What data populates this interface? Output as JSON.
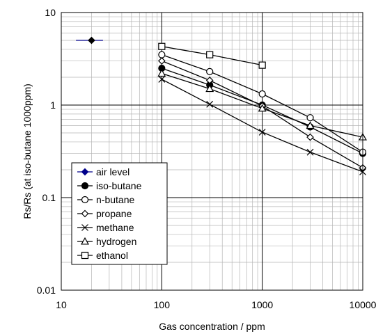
{
  "chart_data": {
    "type": "line",
    "title": "",
    "xlabel": "Gas concentration / ppm",
    "ylabel": "Rs/Rs (at iso-butane 1000ppm)",
    "x_scale": "log",
    "y_scale": "log",
    "xlim": [
      10,
      10000
    ],
    "ylim": [
      0.01,
      10
    ],
    "x_ticks": [
      "10",
      "100",
      "1000",
      "10000"
    ],
    "y_ticks": [
      "0.01",
      "0.1",
      "1",
      "10"
    ],
    "grid": true,
    "legend_position": "bottom-left",
    "series": [
      {
        "name": "air level",
        "marker": "diamond-filled",
        "color": "#00008B",
        "x": [
          14,
          20,
          26
        ],
        "y": [
          5,
          5,
          5
        ]
      },
      {
        "name": "iso-butane",
        "marker": "circle-filled",
        "color": "#000000",
        "x": [
          100,
          300,
          1000,
          3000,
          10000
        ],
        "y": [
          2.5,
          1.65,
          1.0,
          0.58,
          0.3
        ]
      },
      {
        "name": "n-butane",
        "marker": "circle-open",
        "color": "#000000",
        "x": [
          100,
          300,
          1000,
          3000,
          10000
        ],
        "y": [
          3.5,
          2.3,
          1.32,
          0.73,
          0.31
        ]
      },
      {
        "name": "propane",
        "marker": "diamond-open",
        "color": "#000000",
        "x": [
          100,
          300,
          1000,
          3000,
          10000
        ],
        "y": [
          3.0,
          1.85,
          0.98,
          0.45,
          0.21
        ]
      },
      {
        "name": "methane",
        "marker": "x",
        "color": "#000000",
        "x": [
          100,
          300,
          1000,
          3000,
          10000
        ],
        "y": [
          1.9,
          1.02,
          0.51,
          0.31,
          0.19
        ]
      },
      {
        "name": "hydrogen",
        "marker": "triangle-open",
        "color": "#000000",
        "x": [
          100,
          300,
          1000,
          3000,
          10000
        ],
        "y": [
          2.2,
          1.5,
          0.92,
          0.6,
          0.45
        ]
      },
      {
        "name": "ethanol",
        "marker": "square-open",
        "color": "#000000",
        "x": [
          100,
          300,
          1000
        ],
        "y": [
          4.3,
          3.5,
          2.7
        ]
      }
    ]
  }
}
